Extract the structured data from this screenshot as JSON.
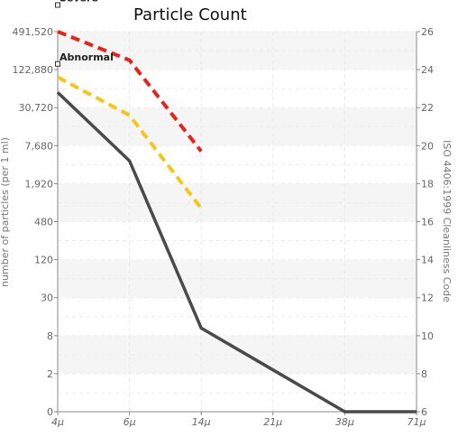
{
  "chart_data": {
    "type": "line",
    "title": "Particle Count",
    "ylabel": "number of particles (per 1 ml)",
    "y2label": "ISO 4406:1999 Cleanliness Code",
    "x_ticks": [
      "4μ",
      "6μ",
      "14μ",
      "21μ",
      "38μ",
      "71μ"
    ],
    "y_ticks": [
      "0",
      "2",
      "8",
      "30",
      "120",
      "480",
      "1,920",
      "7,680",
      "30,720",
      "122,880",
      "491,520"
    ],
    "y2_ticks": [
      "6",
      "8",
      "10",
      "12",
      "14",
      "16",
      "18",
      "20",
      "22",
      "24",
      "26"
    ],
    "y2lim": [
      6,
      26
    ],
    "grid": true,
    "series": [
      {
        "name": "Severe",
        "color": "#e8211c",
        "style": "dashed",
        "x": [
          "4μ",
          "6μ",
          "14μ"
        ],
        "y2": [
          26.0,
          24.5,
          19.7
        ]
      },
      {
        "name": "Abnormal",
        "color": "#f5c518",
        "style": "dashed",
        "x": [
          "4μ",
          "6μ",
          "14μ"
        ],
        "y2": [
          23.6,
          21.6,
          16.7
        ]
      },
      {
        "name": "",
        "color": "#4a4a4a",
        "style": "solid",
        "x": [
          "4μ",
          "6μ",
          "14μ",
          "21μ",
          "38μ",
          "71μ"
        ],
        "y2": [
          22.8,
          19.2,
          10.4,
          8.2,
          6.0,
          6.0
        ]
      }
    ],
    "markers": [
      {
        "label": "Severe",
        "x": "4μ",
        "y2": 27.4
      },
      {
        "label": "Abnormal",
        "x": "4μ",
        "y2": 24.3
      }
    ]
  }
}
